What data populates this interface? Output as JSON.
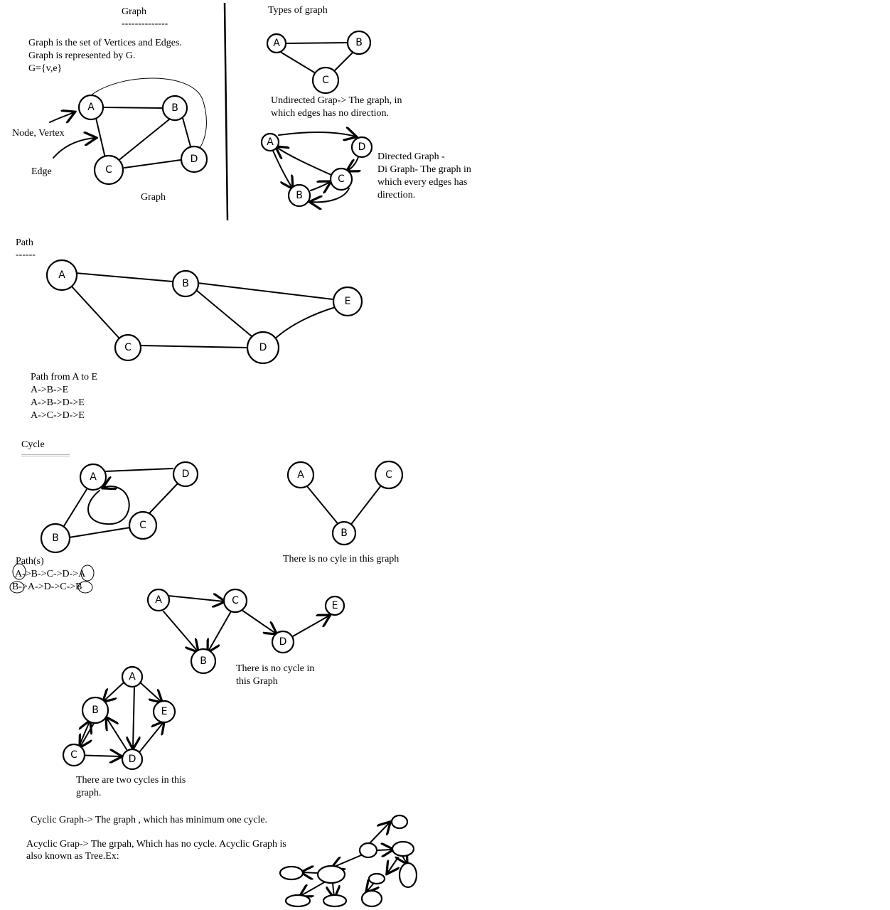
{
  "graph_section": {
    "title": "Graph",
    "underline": "--------------",
    "definition": [
      "Graph is the set of Vertices and Edges.",
      "Graph is represented by G.",
      "G={v,e}"
    ],
    "node_label": "Node, Vertex",
    "edge_label": "Edge",
    "caption": "Graph",
    "nodes": [
      "A",
      "B",
      "C",
      "D"
    ]
  },
  "types_section": {
    "title": "Types of graph",
    "undirected_desc": [
      "Undirected Grap-> The graph, in",
      "which edges has no direction."
    ],
    "directed_desc": [
      "Directed Graph -",
      "Di Graph- The graph in",
      "which every edges has",
      "direction."
    ],
    "undirected_nodes": [
      "A",
      "B",
      "C"
    ],
    "directed_nodes": [
      "A",
      "D",
      "C",
      "B"
    ]
  },
  "path_section": {
    "title": "Path",
    "underline": "------",
    "nodes": [
      "A",
      "B",
      "C",
      "D",
      "E"
    ],
    "heading": "Path from A to E",
    "paths": [
      "A->B->E",
      "A->B->D->E",
      "A->C->D->E"
    ]
  },
  "cycle_section": {
    "title": "Cycle",
    "cycle_nodes": [
      "A",
      "B",
      "C",
      "D"
    ],
    "paths_heading": "Path(s)",
    "paths": [
      "A->B->C->D->A",
      "B->A->D->C->B"
    ],
    "nocycle1_nodes": [
      "A",
      "B",
      "C"
    ],
    "nocycle1_caption": "There is no cyle in this graph",
    "nocycle2_nodes": [
      "A",
      "C",
      "B",
      "D",
      "E"
    ],
    "nocycle2_caption": [
      "There is no cycle in",
      "this Graph"
    ],
    "twocycles_nodes": [
      "A",
      "B",
      "E",
      "C",
      "D"
    ],
    "twocycles_caption": [
      "There are two cycles in this",
      "graph."
    ]
  },
  "definitions": {
    "cyclic": "Cyclic Graph-> The graph , which has minimum one cycle.",
    "acyclic": [
      "Acyclic Grap-> The grpah, Which has no cycle. Acyclic Graph is",
      "also known as Tree.Ex:"
    ]
  }
}
